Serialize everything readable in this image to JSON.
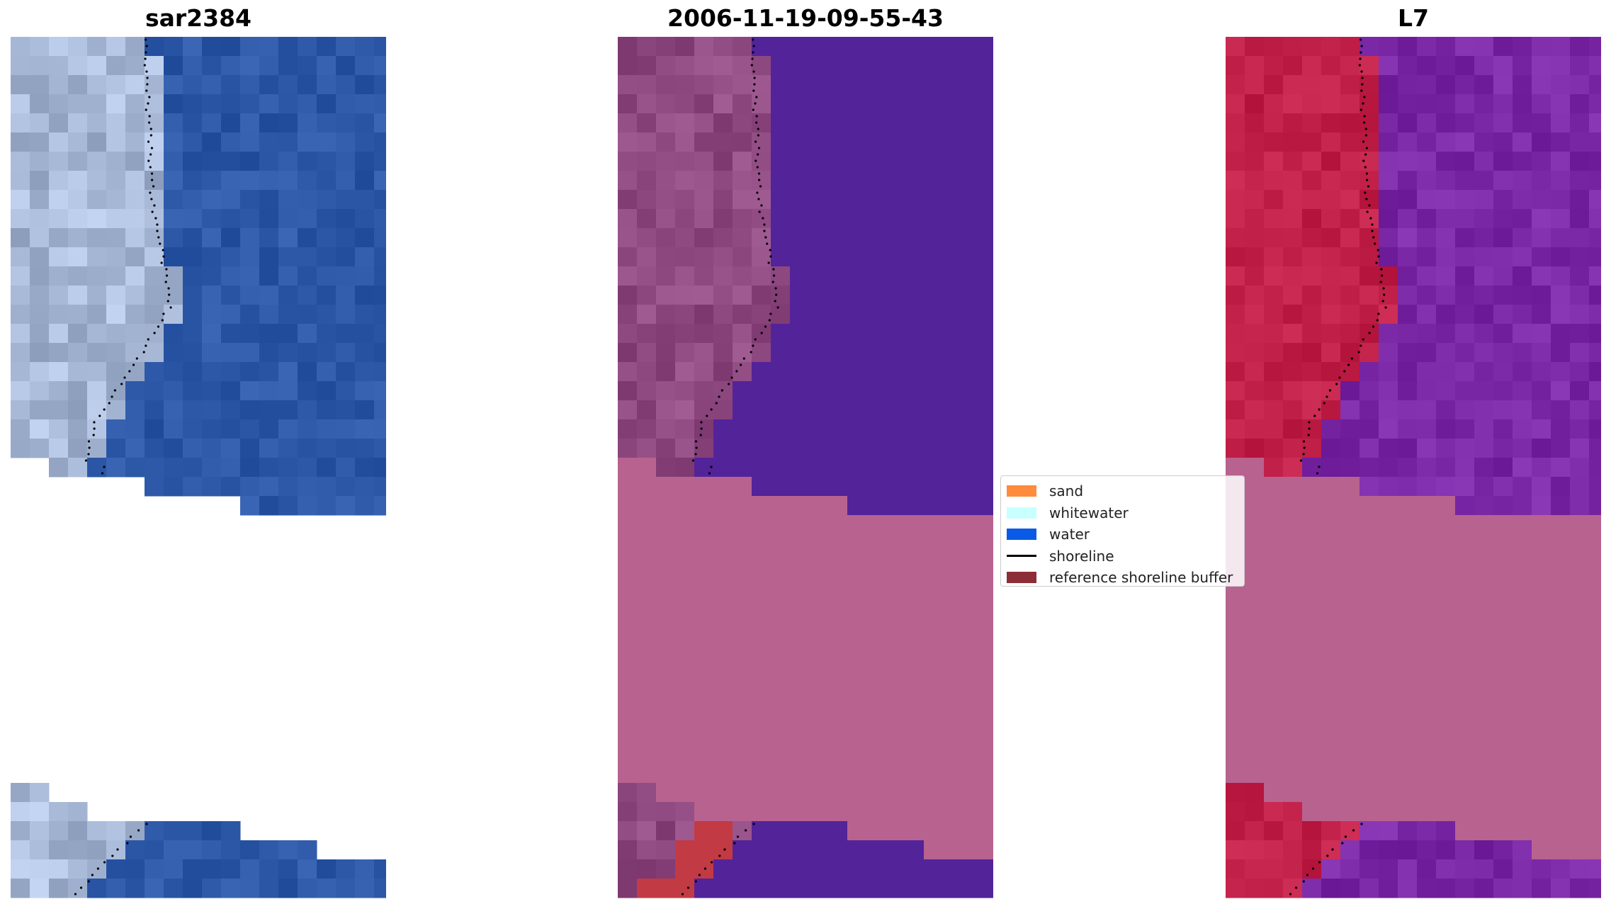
{
  "panels": [
    {
      "title": "sar2384",
      "style": "rgb"
    },
    {
      "title": "2006-11-19-09-55-43",
      "style": "classified"
    },
    {
      "title": "L7",
      "style": "mndwi"
    }
  ],
  "legend": {
    "items": [
      {
        "label": "sand",
        "kind": "patch",
        "color": "#ff8c3c"
      },
      {
        "label": "whitewater",
        "kind": "patch",
        "color": "#c8ffff"
      },
      {
        "label": "water",
        "kind": "patch",
        "color": "#0a5ae6"
      },
      {
        "label": "shoreline",
        "kind": "line",
        "color": "#000000"
      },
      {
        "label": "reference shoreline buffer",
        "kind": "patch",
        "color": "#8c2d37"
      }
    ]
  },
  "colors": {
    "rgb_land": "#a8b9d8",
    "rgb_water": "#2d58a8",
    "classified_land": "#8f4a82",
    "classified_water": "#53239a",
    "classified_band": "#b8628f",
    "buffer": "#c23a44",
    "mndwi_land": "#c12048",
    "mndwi_water": "#7a28a6",
    "mndwi_band": "#b8628f"
  }
}
